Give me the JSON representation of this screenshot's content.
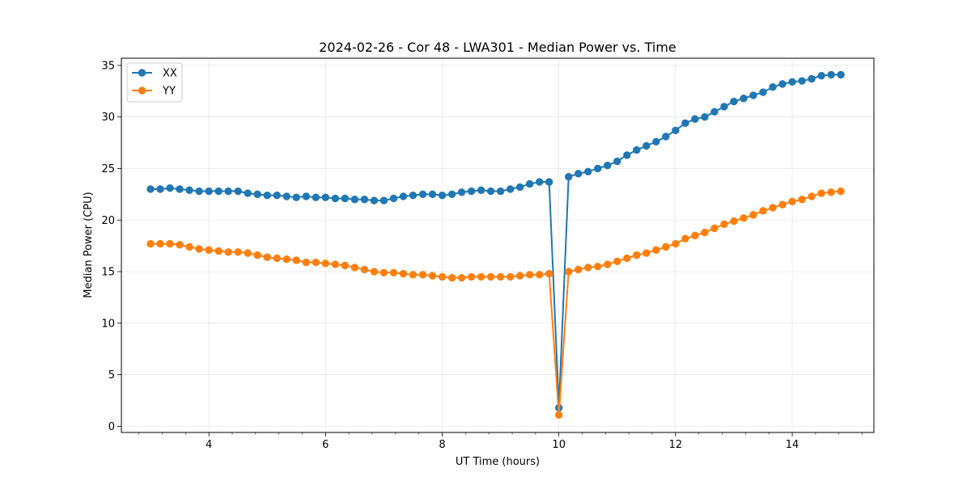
{
  "chart_data": {
    "type": "line",
    "title": "2024-02-26 - Cor 48 - LWA301 - Median Power vs. Time",
    "xlabel": "UT Time (hours)",
    "ylabel": "Median Power (CPU)",
    "xlim": [
      2.5,
      15.4
    ],
    "ylim": [
      -0.6,
      35.7
    ],
    "xticks": [
      4,
      6,
      8,
      10,
      12,
      14
    ],
    "xtick_labels": [
      "4",
      "6",
      "8",
      "10",
      "12",
      "14"
    ],
    "yticks": [
      0,
      5,
      10,
      15,
      20,
      25,
      30,
      35
    ],
    "ytick_labels": [
      "0",
      "5",
      "10",
      "15",
      "20",
      "25",
      "30",
      "35"
    ],
    "grid": true,
    "legend_position": "top-left",
    "x": [
      3.0,
      3.167,
      3.333,
      3.5,
      3.667,
      3.833,
      4.0,
      4.167,
      4.333,
      4.5,
      4.667,
      4.833,
      5.0,
      5.167,
      5.333,
      5.5,
      5.667,
      5.833,
      6.0,
      6.167,
      6.333,
      6.5,
      6.667,
      6.833,
      7.0,
      7.167,
      7.333,
      7.5,
      7.667,
      7.833,
      8.0,
      8.167,
      8.333,
      8.5,
      8.667,
      8.833,
      9.0,
      9.167,
      9.333,
      9.5,
      9.667,
      9.833,
      10.0,
      10.167,
      10.333,
      10.5,
      10.667,
      10.833,
      11.0,
      11.167,
      11.333,
      11.5,
      11.667,
      11.833,
      12.0,
      12.167,
      12.333,
      12.5,
      12.667,
      12.833,
      13.0,
      13.167,
      13.333,
      13.5,
      13.667,
      13.833,
      14.0,
      14.167,
      14.333,
      14.5,
      14.667,
      14.833
    ],
    "series": [
      {
        "name": "XX",
        "color": "#1f77b4",
        "values": [
          23.0,
          23.0,
          23.1,
          23.0,
          22.9,
          22.8,
          22.8,
          22.8,
          22.8,
          22.8,
          22.6,
          22.5,
          22.4,
          22.4,
          22.3,
          22.2,
          22.3,
          22.2,
          22.2,
          22.1,
          22.1,
          22.0,
          22.0,
          21.9,
          21.9,
          22.1,
          22.3,
          22.4,
          22.5,
          22.5,
          22.4,
          22.5,
          22.7,
          22.8,
          22.9,
          22.8,
          22.8,
          23.0,
          23.2,
          23.5,
          23.7,
          23.7,
          1.8,
          24.2,
          24.5,
          24.7,
          25.0,
          25.3,
          25.7,
          26.3,
          26.8,
          27.2,
          27.6,
          28.1,
          28.7,
          29.4,
          29.8,
          30.0,
          30.5,
          31.0,
          31.5,
          31.8,
          32.1,
          32.4,
          32.9,
          33.2,
          33.4,
          33.5,
          33.7,
          34.0,
          34.1,
          34.1
        ]
      },
      {
        "name": "YY",
        "color": "#ff7f0e",
        "values": [
          17.7,
          17.7,
          17.7,
          17.6,
          17.4,
          17.2,
          17.1,
          17.0,
          16.9,
          16.9,
          16.8,
          16.6,
          16.4,
          16.3,
          16.2,
          16.1,
          15.9,
          15.9,
          15.8,
          15.7,
          15.6,
          15.4,
          15.2,
          15.0,
          14.9,
          14.9,
          14.8,
          14.7,
          14.7,
          14.6,
          14.5,
          14.4,
          14.4,
          14.5,
          14.5,
          14.5,
          14.5,
          14.5,
          14.6,
          14.7,
          14.7,
          14.8,
          1.1,
          15.0,
          15.2,
          15.4,
          15.5,
          15.7,
          16.0,
          16.3,
          16.6,
          16.8,
          17.1,
          17.4,
          17.7,
          18.2,
          18.5,
          18.8,
          19.2,
          19.6,
          19.9,
          20.2,
          20.5,
          20.9,
          21.2,
          21.5,
          21.8,
          22.0,
          22.3,
          22.6,
          22.7,
          22.8
        ]
      }
    ]
  }
}
